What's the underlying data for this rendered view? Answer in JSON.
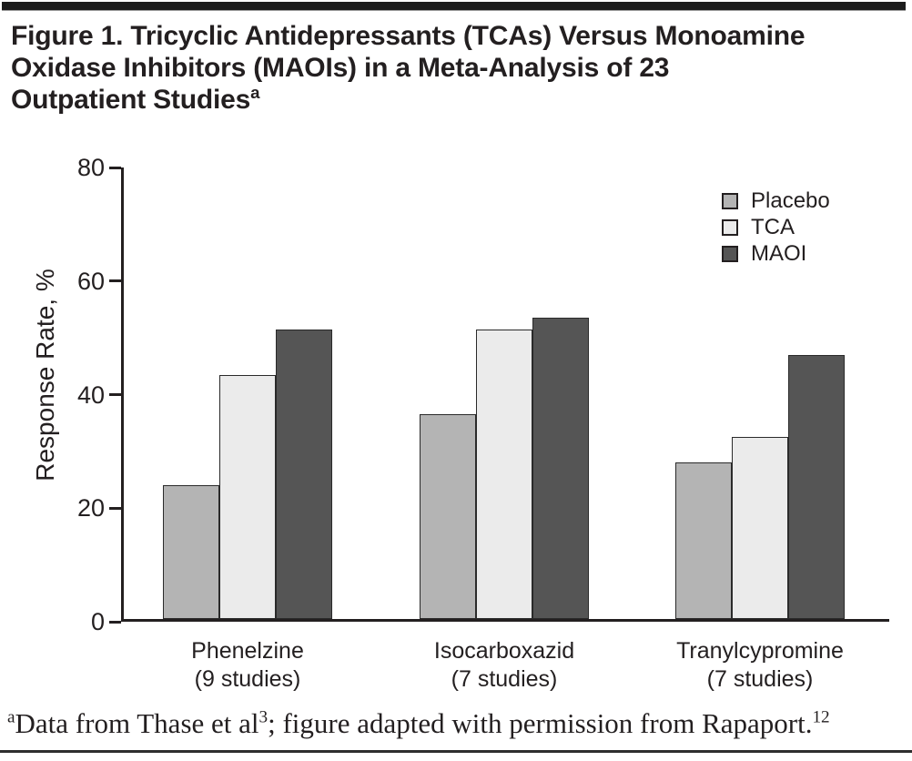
{
  "figure": {
    "title_lines": [
      "Figure 1. Tricyclic Antidepressants (TCAs) Versus Monoamine",
      "Oxidase Inhibitors (MAOIs) in a Meta-Analysis of 23",
      "Outpatient Studies"
    ],
    "title_superscript": "a",
    "footnote": {
      "lead_sup": "a",
      "part1": "Data from Thase et al",
      "sup1": "3",
      "part2": "; figure adapted with permission from Rapaport.",
      "sup2": "12"
    }
  },
  "chart_data": {
    "type": "bar",
    "title": "",
    "xlabel": "",
    "ylabel": "Response Rate, %",
    "ylim": [
      0,
      80
    ],
    "yticks": [
      0,
      20,
      40,
      60,
      80
    ],
    "grid": false,
    "legend_position": "top-right",
    "categories": [
      {
        "name": "Phenelzine",
        "sub": "(9 studies)"
      },
      {
        "name": "Isocarboxazid",
        "sub": "(7 studies)"
      },
      {
        "name": "Tranylcypromine",
        "sub": "(7 studies)"
      }
    ],
    "series": [
      {
        "name": "Placebo",
        "color": "#b4b4b4",
        "values": [
          23.5,
          36,
          27.5
        ]
      },
      {
        "name": "TCA",
        "color": "#ebebeb",
        "values": [
          43,
          51,
          32
        ]
      },
      {
        "name": "MAOI",
        "color": "#555555",
        "values": [
          51,
          53,
          46.5
        ]
      }
    ]
  },
  "colors": {
    "ink": "#231f20",
    "bar_border": "#2a2a2a",
    "top_rule": "#1c1c1c",
    "bottom_rule": "#2e2e2e"
  }
}
